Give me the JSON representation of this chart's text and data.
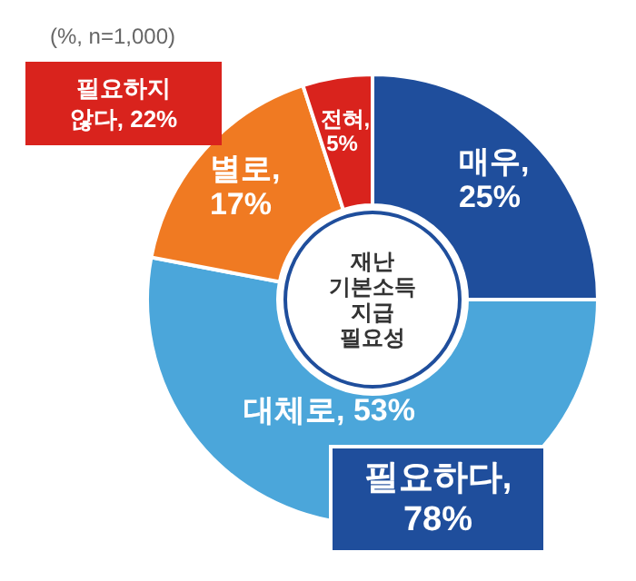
{
  "chart_data": {
    "type": "donut",
    "title": "재난\n기본소득\n지급\n필요성",
    "categories": [
      "매우",
      "대체로",
      "별로",
      "전혀"
    ],
    "values": [
      25,
      53,
      17,
      5
    ],
    "colors": [
      "#1f4e9c",
      "#4ba6da",
      "#f07a22",
      "#d9231d"
    ],
    "value_labels": [
      ",\n25%",
      ", 53%",
      ",\n17%",
      ",\n5%"
    ],
    "annotations": [
      "(%, n=1,000)",
      "필요하지\n않다, 22%",
      "필요하다,\n78%"
    ]
  }
}
